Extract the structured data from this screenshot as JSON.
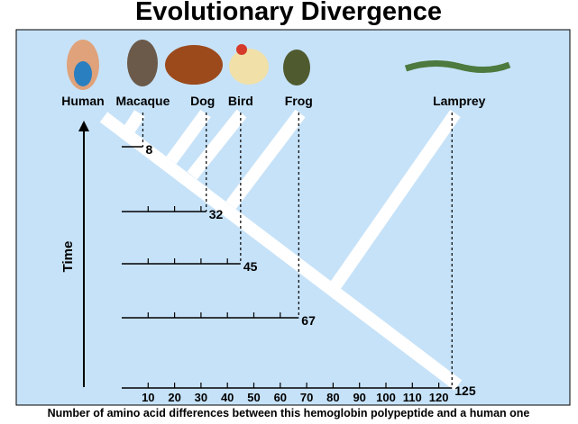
{
  "title": "Evolutionary Divergence",
  "species": [
    "Human",
    "Macaque",
    "Dog",
    "Bird",
    "Frog",
    "Lamprey"
  ],
  "y_axis_label": "Time",
  "differences": [
    8,
    32,
    45,
    67,
    125
  ],
  "axis_ticks": [
    10,
    20,
    30,
    40,
    50,
    60,
    70,
    80,
    90,
    100,
    110,
    120
  ],
  "caption": "Number of amino acid differences between this hemoglobin polypeptide and a human one"
}
